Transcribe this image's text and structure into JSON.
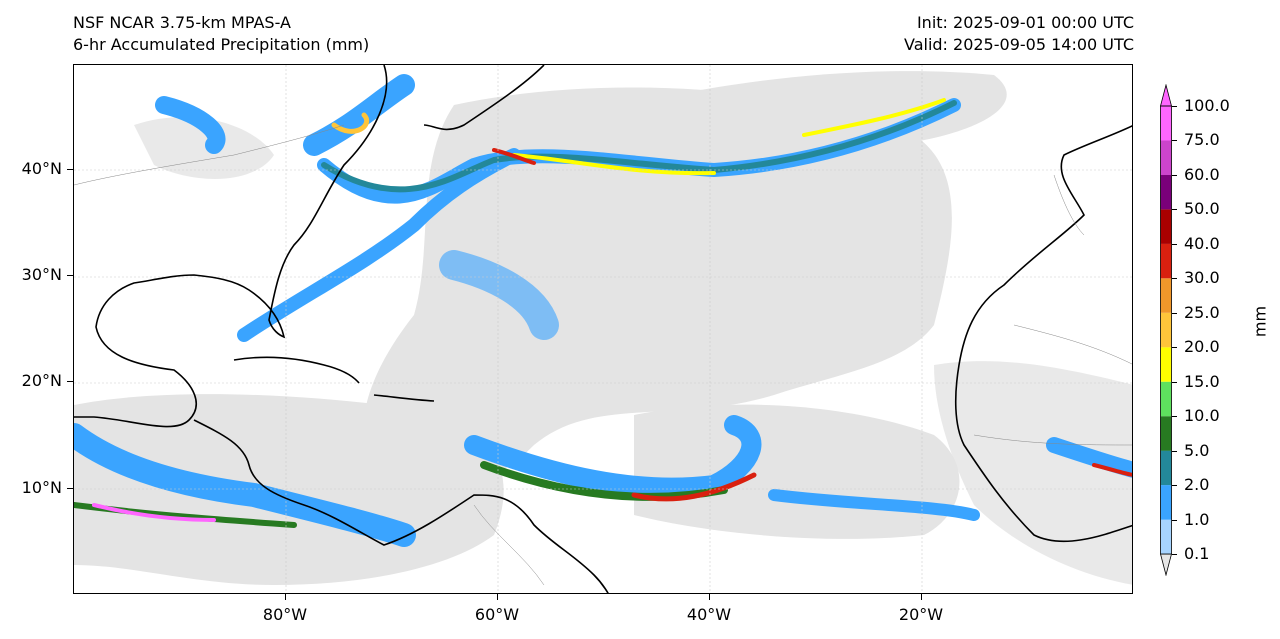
{
  "header": {
    "model": "NSF NCAR 3.75-km MPAS-A",
    "field": "6-hr Accumulated Precipitation (mm)",
    "init": "Init: 2025-09-01 00:00 UTC",
    "valid": "Valid: 2025-09-05 14:00 UTC"
  },
  "map": {
    "lat_labels": [
      "40°N",
      "30°N",
      "20°N",
      "10°N"
    ],
    "lon_labels": [
      "80°W",
      "60°W",
      "40°W",
      "20°W"
    ]
  },
  "colorbar": {
    "unit": "mm",
    "levels": [
      "0.1",
      "1.0",
      "2.0",
      "5.0",
      "10.0",
      "15.0",
      "20.0",
      "25.0",
      "30.0",
      "40.0",
      "50.0",
      "60.0",
      "75.0",
      "100.0"
    ],
    "colors": [
      "#e6e6e6",
      "#a7d4ff",
      "#3aa4ff",
      "#23889a",
      "#277a21",
      "#5ee05e",
      "#ffff00",
      "#ffc53a",
      "#f0972a",
      "#d9200f",
      "#a90000",
      "#7a007a",
      "#cc44cc",
      "#ff66ff"
    ]
  }
}
